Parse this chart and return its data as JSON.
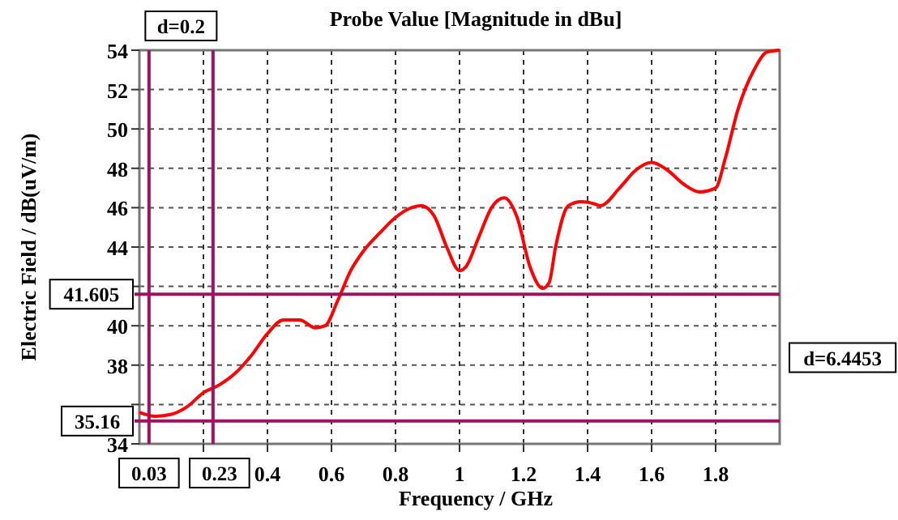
{
  "chart_data": {
    "type": "line",
    "title": "Probe Value [Magnitude in dBu]",
    "xlabel": "Frequency / GHz",
    "ylabel": "Electric Field / dB(uV/m)",
    "x": [
      0,
      0.05,
      0.1,
      0.15,
      0.2,
      0.25,
      0.3,
      0.35,
      0.4,
      0.45,
      0.5,
      0.55,
      0.58,
      0.62,
      0.66,
      0.7,
      0.75,
      0.8,
      0.85,
      0.88,
      0.92,
      0.96,
      1.0,
      1.02,
      1.06,
      1.1,
      1.14,
      1.18,
      1.22,
      1.26,
      1.28,
      1.3,
      1.34,
      1.38,
      1.42,
      1.44,
      1.5,
      1.55,
      1.6,
      1.65,
      1.7,
      1.75,
      1.8,
      1.83,
      1.87,
      1.92,
      1.96,
      2.0
    ],
    "series": [
      {
        "color": "#ff0000",
        "values": [
          35.6,
          35.4,
          35.5,
          35.9,
          36.6,
          37.0,
          37.6,
          38.5,
          39.6,
          40.3,
          40.3,
          39.9,
          40.0,
          41.3,
          42.8,
          43.8,
          44.7,
          45.5,
          46.0,
          46.1,
          45.6,
          44.0,
          42.8,
          43.0,
          44.5,
          46.0,
          46.5,
          45.5,
          43.0,
          41.9,
          42.2,
          44.0,
          46.1,
          46.3,
          46.2,
          46.1,
          47.0,
          47.9,
          48.3,
          47.9,
          47.2,
          46.8,
          47.0,
          48.5,
          51.0,
          53.0,
          53.9,
          54.0
        ]
      }
    ],
    "xlim": [
      0,
      2
    ],
    "xticks": [
      {
        "value": 0.2,
        "label": null
      },
      0.4,
      0.6,
      0.8,
      1,
      1.2,
      1.4,
      1.6,
      1.8
    ],
    "ylim": [
      34,
      54
    ],
    "yticks": [
      34,
      {
        "value": 36,
        "label": null
      },
      38,
      40,
      {
        "value": 42,
        "label": null
      },
      44,
      46,
      48,
      50,
      52,
      54
    ],
    "grid": true,
    "line_style": "solid",
    "marker": "none",
    "ref_lines": [
      {
        "axis": "x",
        "value": 0.03,
        "label": "0.03",
        "color": "#a0125f"
      },
      {
        "axis": "x",
        "value": 0.23,
        "label": "0.23",
        "color": "#a0125f"
      },
      {
        "axis": "y",
        "value": 41.605,
        "label": "41.605",
        "color": "#a0125f"
      },
      {
        "axis": "y",
        "value": 35.16,
        "label": "35.16",
        "color": "#a0125f"
      }
    ],
    "annotations": [
      "d=0.2",
      "d=6.4453"
    ]
  }
}
